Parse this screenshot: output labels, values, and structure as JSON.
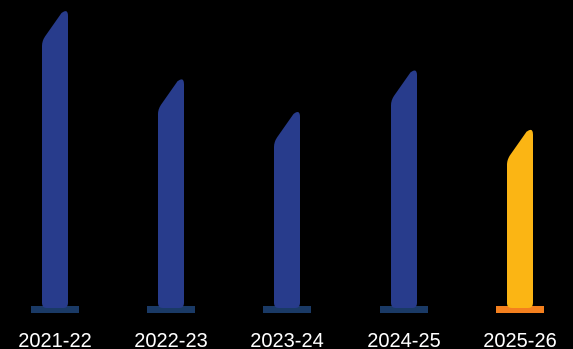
{
  "chart_data": {
    "type": "bar",
    "categories": [
      "2021-22",
      "2022-23",
      "2023-24",
      "2024-25",
      "2025-26"
    ],
    "values": [
      100,
      77,
      66,
      80,
      60
    ],
    "title": "",
    "xlabel": "",
    "ylabel": "",
    "ylim": [
      0,
      100
    ],
    "grid": false,
    "legend": "none",
    "colors": {
      "bar": "#283c8c",
      "bar_highlight": "#fbb514",
      "base": "#1a3a66",
      "base_highlight": "#f4801e",
      "label": "#ffffff",
      "background": "#000000"
    },
    "highlight_index": 4
  }
}
